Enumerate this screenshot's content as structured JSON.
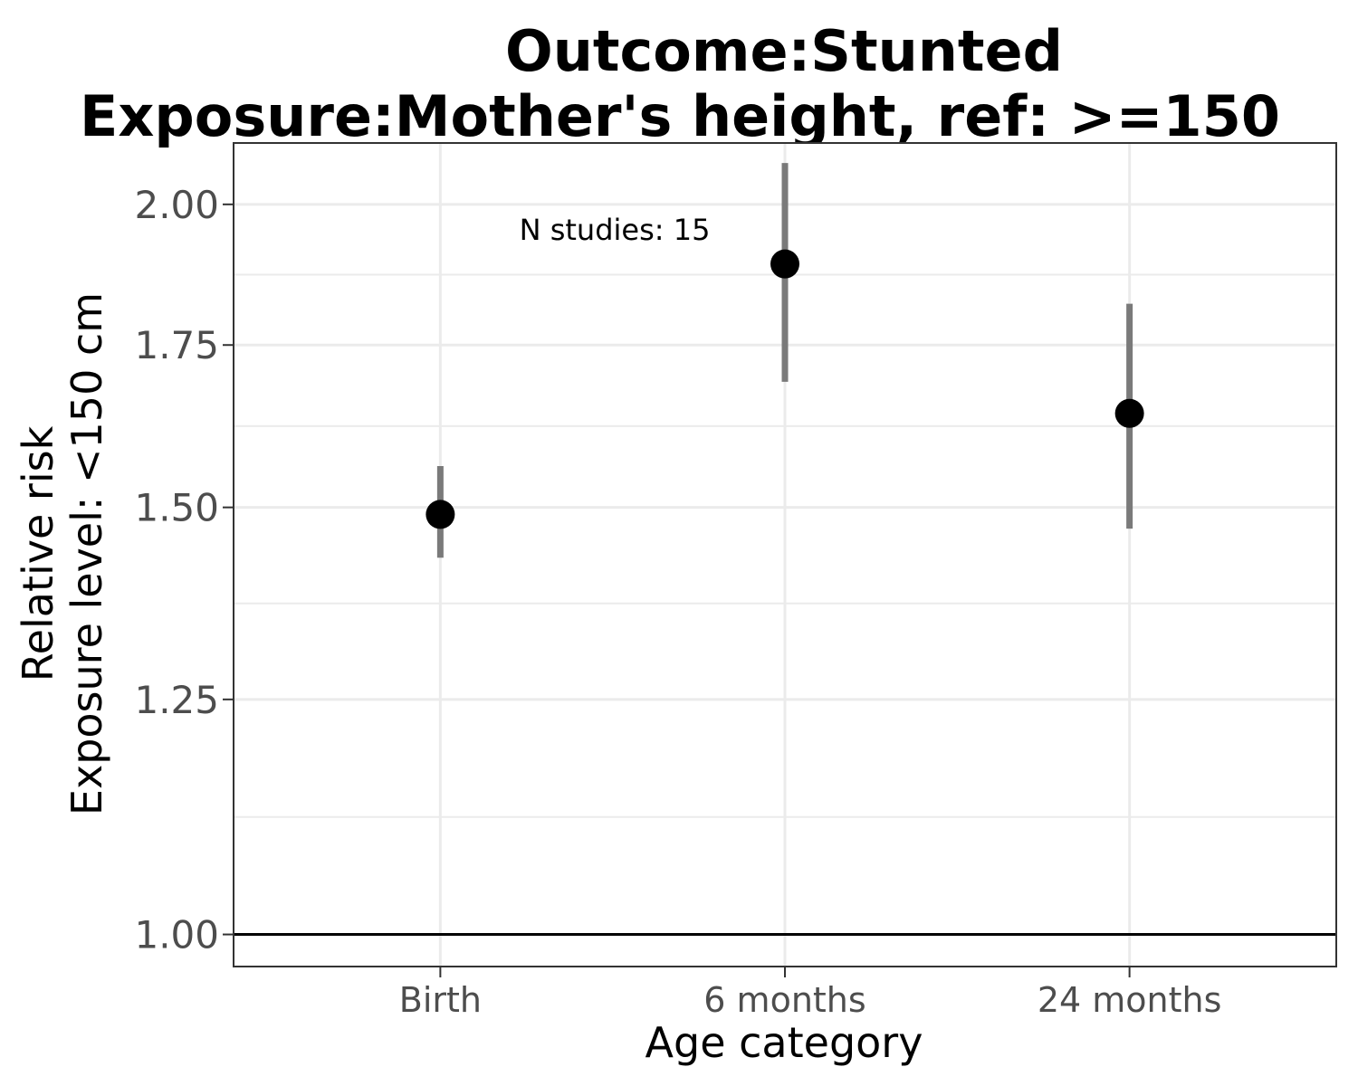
{
  "chart_data": {
    "type": "scatter",
    "title_line1": "Outcome:Stunted",
    "title_line2": "Exposure:Mother's height, ref: >=150",
    "xlabel": "Age category",
    "ylabel_line1": "Relative risk",
    "ylabel_line2": "Exposure level: <150 cm",
    "categories": [
      "Birth",
      "6 months",
      "24 months"
    ],
    "points": [
      {
        "category": "Birth",
        "estimate": 1.49,
        "ci_lower": 1.43,
        "ci_upper": 1.56
      },
      {
        "category": "6 months",
        "estimate": 1.89,
        "ci_lower": 1.69,
        "ci_upper": 2.08
      },
      {
        "category": "24 months",
        "estimate": 1.64,
        "ci_lower": 1.47,
        "ci_upper": 1.82
      }
    ],
    "y_scale": "log",
    "ylim": [
      0.97,
      2.12
    ],
    "yticks": [
      "1.00",
      "1.25",
      "1.50",
      "1.75",
      "2.00"
    ],
    "reference_line": 1.0,
    "annotation": "N studies: 15",
    "grid": true,
    "point_color": "#000000",
    "errorbar_color": "#7a7a7a"
  }
}
